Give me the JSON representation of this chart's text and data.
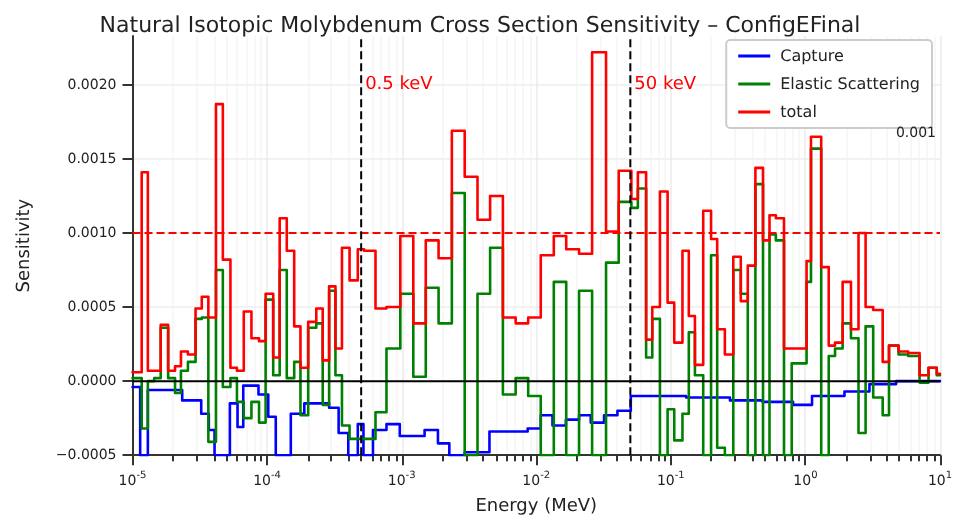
{
  "chart_data": {
    "type": "step",
    "title": "Natural Isotopic Molybdenum Cross Section Sensitivity – ConfigEFinal",
    "xlabel": "Energy (MeV)",
    "ylabel": "Sensitivity",
    "log": "x",
    "grid": true,
    "legend": "top right",
    "marker": "none",
    "line_style": "solid",
    "xlim": [
      1e-05,
      10
    ],
    "xticks": [
      {
        "value": 1e-05,
        "label": "10$^{-5}$"
      },
      {
        "value": 0.0001,
        "label": "10$^{-4}$"
      },
      {
        "value": 0.001,
        "label": "10$^{-3}$"
      },
      {
        "value": 0.01,
        "label": "10$^{-2}$"
      },
      {
        "value": 0.1,
        "label": "10$^{-1}$"
      },
      {
        "value": 1,
        "label": "10$^{0}$"
      },
      {
        "value": 10,
        "label": "10$^{1}$"
      }
    ],
    "ylim": [
      -0.0005,
      0.00233
    ],
    "yticks": [
      {
        "value": -0.0005,
        "label": "−0.0005"
      },
      {
        "value": 0,
        "label": "0.0000"
      },
      {
        "value": 0.0005,
        "label": "0.0005"
      },
      {
        "value": 0.001,
        "label": "0.0010"
      },
      {
        "value": 0.0015,
        "label": "0.0015"
      },
      {
        "value": 0.002,
        "label": "0.0020"
      }
    ],
    "x": [
      1e-05,
      1.17e-05,
      1.3e-05,
      1.45e-05,
      1.62e-05,
      1.84e-05,
      2.07e-05,
      2.29e-05,
      2.58e-05,
      2.94e-05,
      3.27e-05,
      3.66e-05,
      4.17e-05,
      4.69e-05,
      5.34e-05,
      5.97e-05,
      6.71e-05,
      7.65e-05,
      8.71e-05,
      9.75e-05,
      0.000111,
      0.000124,
      0.00014,
      0.000159,
      0.000177,
      0.000202,
      0.000232,
      0.000259,
      0.000289,
      0.000322,
      0.00036,
      0.00041,
      0.000472,
      0.000526,
      0.000639,
      0.000771,
      0.000977,
      0.00122,
      0.00151,
      0.00188,
      0.00236,
      0.00294,
      0.00366,
      0.00454,
      0.00565,
      0.00703,
      0.00871,
      0.0108,
      0.0135,
      0.0167,
      0.0208,
      0.026,
      0.033,
      0.041,
      0.0509,
      0.0569,
      0.0655,
      0.0728,
      0.083,
      0.0946,
      0.106,
      0.122,
      0.136,
      0.151,
      0.174,
      0.199,
      0.221,
      0.252,
      0.291,
      0.331,
      0.373,
      0.425,
      0.484,
      0.541,
      0.603,
      0.693,
      0.791,
      1.02,
      1.1,
      1.31,
      1.49,
      1.66,
      1.89,
      2.18,
      2.48,
      2.8,
      3.19,
      3.75,
      4.18,
      4.92,
      5.8,
      7.05,
      8.22,
      9.46,
      10
    ],
    "series": [
      {
        "name": "Capture",
        "color": "#0000ff",
        "x": [
          1e-05,
          1.14e-05,
          1.3e-05,
          2.34e-05,
          3.24e-05,
          3.69e-05,
          4.07e-05,
          5.29e-05,
          6.03e-05,
          6.65e-05,
          8.63e-05,
          0.000102,
          0.000116,
          0.00015,
          0.000189,
          0.000289,
          0.00034,
          0.000401,
          0.000472,
          0.00052,
          0.000612,
          0.000771,
          0.000968,
          0.00148,
          0.00186,
          0.00226,
          0.00294,
          0.00449,
          0.00863,
          0.0108,
          0.0132,
          0.0166,
          0.0208,
          0.0254,
          0.0319,
          0.0401,
          0.0504,
          0.13,
          0.275,
          0.48,
          0.809,
          1.12,
          1.95,
          2.99,
          4.72,
          10
        ],
        "values": [
          -4e-05,
          -0.0005,
          -6e-05,
          -0.00013,
          -0.00022,
          -0.00033,
          -0.0005,
          -0.00015,
          -0.00031,
          -3e-05,
          -9e-05,
          -0.00024,
          -0.0005,
          -0.00022,
          -0.00015,
          -0.00018,
          -0.00035,
          -0.0005,
          -0.00029,
          -0.0005,
          -0.00033,
          -0.00029,
          -0.00037,
          -0.00033,
          -0.00042,
          -0.0005,
          -0.00048,
          -0.00034,
          -0.00032,
          -0.00023,
          -0.0003,
          -0.00026,
          -0.00023,
          -0.00028,
          -0.00023,
          -0.0002,
          -0.0001,
          -0.00011,
          -0.00013,
          -0.00014,
          -0.00016,
          -0.0001,
          -7e-05,
          -2e-05,
          0,
          0
        ]
      },
      {
        "name": "Elastic Scattering",
        "color": "#008000",
        "values": [
          2e-05,
          -0.00032,
          0,
          2e-05,
          0.00036,
          2e-05,
          -8e-05,
          7e-05,
          0.00013,
          0.00042,
          0.00043,
          -0.00041,
          0.00075,
          -4e-05,
          2e-05,
          -0.00014,
          -0.00025,
          -0.00014,
          -0.00028,
          0.00055,
          4e-05,
          0.00075,
          2e-05,
          0.00013,
          -0.00023,
          0.00036,
          0.00039,
          -0.00016,
          0.00061,
          4e-05,
          -0.0003,
          -0.00039,
          -0.00039,
          -0.00039,
          -0.00021,
          0.00022,
          0.00059,
          3e-05,
          0.00063,
          0.00039,
          0.00127,
          -0.0005,
          0.00059,
          0.0009,
          -9e-05,
          2e-05,
          -0.0001,
          -0.0005,
          0.00067,
          -0.0005,
          0.00061,
          -0.0005,
          0.0008,
          0.00121,
          0.00117,
          0.0013,
          0.00016,
          0.00042,
          -0.0005,
          -0.00019,
          -0.0004,
          -0.00022,
          0.00033,
          4e-05,
          -0.0005,
          0.00085,
          -0.00045,
          -0.0005,
          0.00075,
          0.00059,
          -0.0005,
          0.00133,
          -0.0005,
          0.00099,
          0.00095,
          -0.0005,
          0.00012,
          0.00067,
          0.00157,
          -0.0005,
          0.00017,
          0.00022,
          0.00039,
          0.00029,
          -0.00035,
          0.00037,
          -0.00011,
          -0.00023,
          0.00024,
          0.00018,
          0.00017,
          -1e-05,
          9e-05,
          4e-05,
          4e-05
        ]
      },
      {
        "name": "total",
        "color": "#ff0000",
        "values": [
          6e-05,
          0.00141,
          7e-05,
          7e-05,
          0.00038,
          7e-05,
          0.0001,
          0.0002,
          0.00018,
          0.00049,
          0.00057,
          0.00043,
          0.00187,
          0.00082,
          9e-05,
          7e-05,
          0.00047,
          0.00029,
          0.00027,
          0.00059,
          0.00016,
          0.0011,
          0.00088,
          0.00037,
          9e-05,
          0.0004,
          0.00049,
          0.00014,
          0.00064,
          0.00022,
          0.0009,
          0.00068,
          0.00089,
          0.00088,
          0.00049,
          0.0005,
          0.00098,
          0.00039,
          0.00095,
          0.00083,
          0.00169,
          0.00138,
          0.00109,
          0.00125,
          0.00043,
          0.00039,
          0.00043,
          0.00085,
          0.00098,
          0.00089,
          0.00086,
          0.00222,
          0.00101,
          0.00142,
          0.00123,
          0.00141,
          0.00028,
          0.0005,
          0.00128,
          0.00053,
          0.00026,
          0.00088,
          0.00044,
          0.00011,
          0.00115,
          0.00096,
          0.00035,
          0.00018,
          0.00084,
          0.00054,
          0.00078,
          0.00144,
          0.00095,
          0.00112,
          0.0011,
          0.00022,
          0.00022,
          0.00081,
          0.00165,
          0.00077,
          0.00024,
          0.00026,
          0.00067,
          0.00035,
          0.001,
          0.0005,
          0.00048,
          0.00013,
          0.00024,
          0.0002,
          0.00019,
          4e-05,
          9e-05,
          5e-05,
          5e-05
        ]
      }
    ],
    "ref_lines": [
      {
        "axis": "y",
        "value": 0,
        "color": "#000000",
        "line_style": "solid"
      },
      {
        "axis": "y",
        "value": 0.001,
        "color": "#ff0000",
        "line_style": "dashed"
      },
      {
        "axis": "x",
        "value": 0.0005,
        "label": "0.5 keV",
        "color": "#000000",
        "line_style": "dashed"
      },
      {
        "axis": "x",
        "value": 0.05,
        "label": "50 keV",
        "color": "#000000",
        "line_style": "dashed"
      }
    ],
    "annotations": [
      "0.001"
    ]
  }
}
